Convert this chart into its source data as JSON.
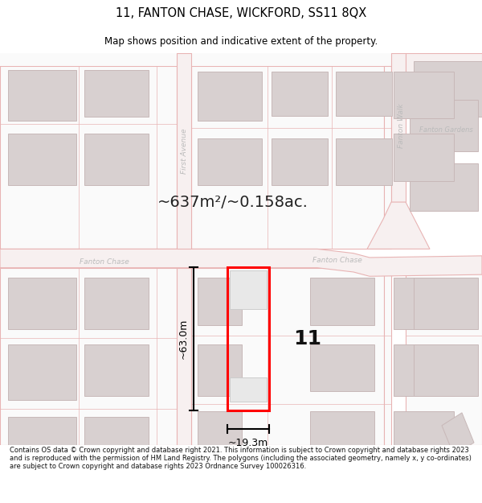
{
  "title": "11, FANTON CHASE, WICKFORD, SS11 8QX",
  "subtitle": "Map shows position and indicative extent of the property.",
  "area_text": "~637m²/~0.158ac.",
  "number_label": "11",
  "width_label": "~19.3m",
  "height_label": "~63.0m",
  "copyright_text": "Contains OS data © Crown copyright and database right 2021. This information is subject to Crown copyright and database rights 2023 and is reproduced with the permission of HM Land Registry. The polygons (including the associated geometry, namely x, y co-ordinates) are subject to Crown copyright and database rights 2023 Ordnance Survey 100026316.",
  "bg_color": "#ffffff",
  "map_bg_color": "#ffffff",
  "road_stroke": "#e8b4b4",
  "road_fill": "#f7f0f0",
  "building_fill": "#d8d0d0",
  "building_edge": "#c8b8b8",
  "plot_color": "#ff0000",
  "text_dark": "#000000",
  "text_road": "#aaaaaa",
  "title_color": "#000000"
}
